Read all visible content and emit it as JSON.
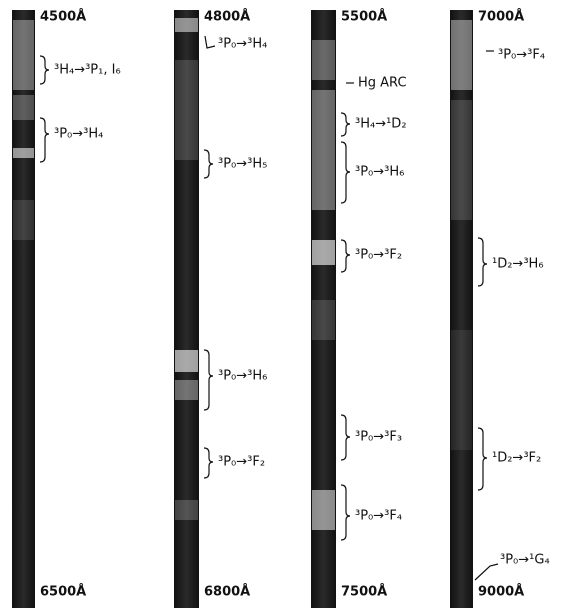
{
  "columns": [
    {
      "range_start": "4500Å",
      "range_end": "6500Å",
      "transitions": [
        "³H₄→³P₁, I₆",
        "³P₀→³H₄"
      ]
    },
    {
      "range_start": "4800Å",
      "range_end": "6800Å",
      "transitions": [
        "³P₀→³H₄",
        "³P₀→³H₅",
        "³P₀→³H₆",
        "³P₀→³F₂"
      ]
    },
    {
      "range_start": "5500Å",
      "range_end": "7500Å",
      "reference": "Hg ARC",
      "transitions": [
        "³H₄→¹D₂",
        "³P₀→³H₆",
        "³P₀→³F₂",
        "³P₀→³F₃",
        "³P₀→³F₄"
      ]
    },
    {
      "range_start": "7000Å",
      "range_end": "9000Å",
      "transitions": [
        "³P₀→³F₄",
        "¹D₂→³H₆",
        "¹D₂→³F₂",
        "³P₀→¹G₄"
      ]
    }
  ]
}
